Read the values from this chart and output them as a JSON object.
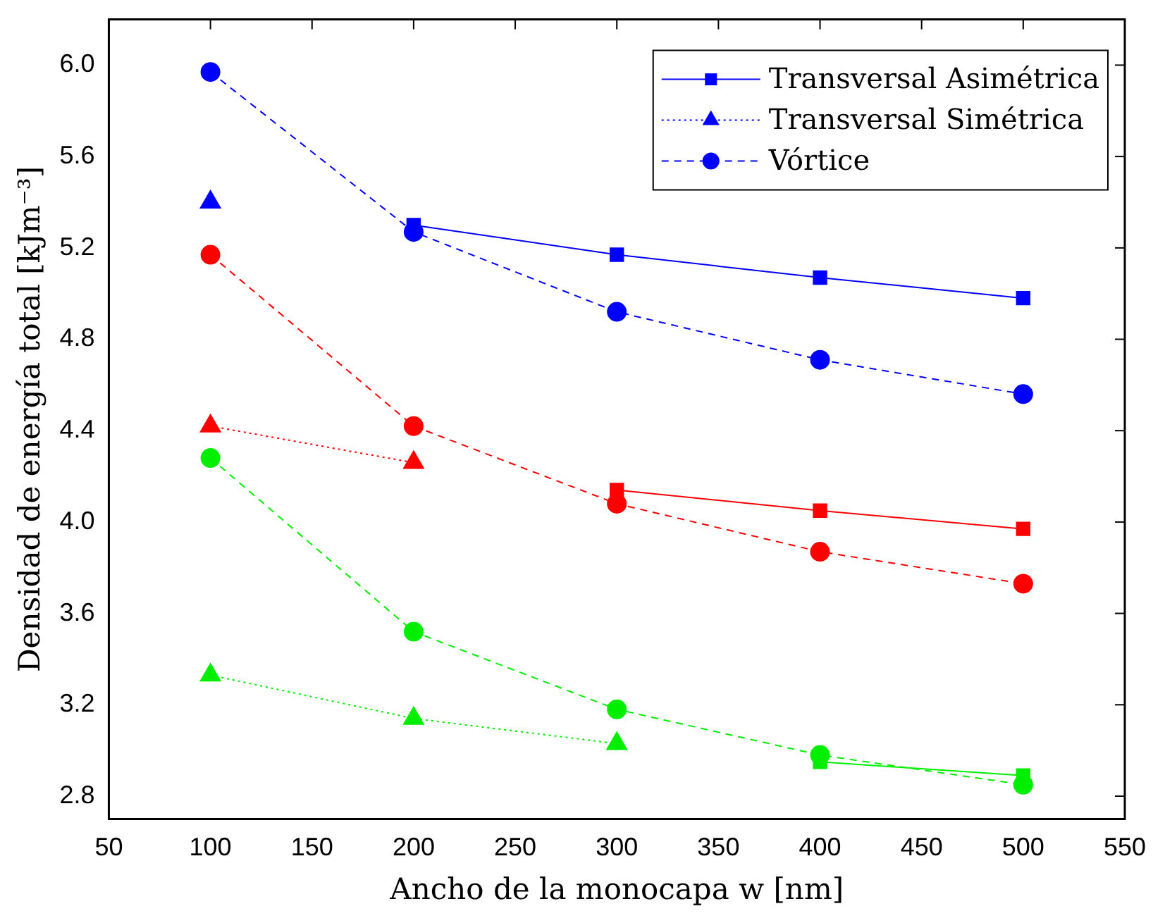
{
  "chart_data": {
    "type": "line",
    "xlabel": "Ancho de la monocapa w [nm]",
    "ylabel": "Densidad de energía total [kJm⁻³]",
    "xlim": [
      50,
      550
    ],
    "xticks": [
      50,
      100,
      150,
      200,
      250,
      300,
      350,
      400,
      450,
      500,
      550
    ],
    "ylim": [
      2.7,
      6.2
    ],
    "yticks": [
      {
        "value": 2.8,
        "label": "2.8"
      },
      {
        "value": 3.2,
        "label": "3.2"
      },
      {
        "value": 3.6,
        "label": "3.6"
      },
      {
        "value": 4,
        "label": "4.0"
      },
      {
        "value": 4.4,
        "label": "4.4"
      },
      {
        "value": 4.8,
        "label": "4.8"
      },
      {
        "value": 5.2,
        "label": "5.2"
      },
      {
        "value": 5.6,
        "label": "5.6"
      },
      {
        "value": 6,
        "label": "6.0"
      }
    ],
    "grid": false,
    "legend": "top right",
    "series": [
      {
        "name": "Transversal Asimétrica",
        "color": "#0000ff",
        "x": [
          200,
          300,
          400,
          500
        ],
        "values": [
          5.3,
          5.17,
          5.07,
          4.98
        ],
        "marker": "square",
        "line_style": "solid"
      },
      {
        "name": "Transversal Simétrica",
        "color": "#0000ff",
        "x": [
          100
        ],
        "values": [
          5.4
        ],
        "marker": "triangle",
        "line_style": "dotted"
      },
      {
        "name": "Vórtice",
        "color": "#0000ff",
        "x": [
          100,
          200,
          300,
          400,
          500
        ],
        "values": [
          5.97,
          5.27,
          4.92,
          4.71,
          4.56
        ],
        "marker": "circle",
        "line_style": "dashed"
      },
      {
        "color": "#ff0000",
        "x": [
          300,
          400,
          500
        ],
        "values": [
          4.14,
          4.05,
          3.97
        ],
        "marker": "square",
        "line_style": "solid"
      },
      {
        "color": "#ff0000",
        "x": [
          100,
          200
        ],
        "values": [
          4.42,
          4.26
        ],
        "marker": "triangle",
        "line_style": "dotted"
      },
      {
        "color": "#ff0000",
        "x": [
          100,
          200,
          300,
          400,
          500
        ],
        "values": [
          5.17,
          4.42,
          4.08,
          3.87,
          3.73
        ],
        "marker": "circle",
        "line_style": "dashed"
      },
      {
        "color": "#00ee00",
        "x": [
          400,
          500
        ],
        "values": [
          2.95,
          2.89
        ],
        "marker": "square",
        "line_style": "solid"
      },
      {
        "color": "#00ee00",
        "x": [
          100,
          200,
          300
        ],
        "values": [
          3.33,
          3.14,
          3.03
        ],
        "marker": "triangle",
        "line_style": "dotted"
      },
      {
        "color": "#00ee00",
        "x": [
          100,
          200,
          300,
          400,
          500
        ],
        "values": [
          4.28,
          3.52,
          3.18,
          2.98,
          2.85
        ],
        "marker": "circle",
        "line_style": "dashed"
      }
    ]
  }
}
